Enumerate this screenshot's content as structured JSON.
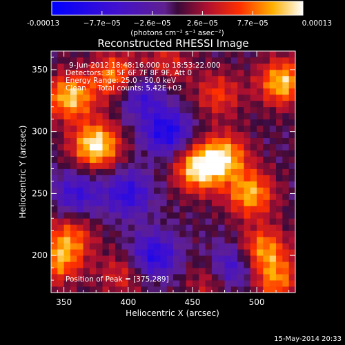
{
  "chart_data": {
    "type": "heatmap",
    "title": "Reconstructed RHESSI Image",
    "xlabel": "Heliocentric X (arcsec)",
    "ylabel": "Heliocentric Y (arcsec)",
    "xlim": [
      340,
      530
    ],
    "ylim": [
      170,
      365
    ],
    "x_ticks": [
      350,
      400,
      450,
      500
    ],
    "y_ticks": [
      200,
      250,
      300,
      350
    ],
    "colorbar": {
      "range": [
        -0.00013,
        0.00013
      ],
      "tick_labels": [
        "-0.00013",
        "−7.7e−05",
        "−2.6e−05",
        "2.6e−05",
        "7.7e−05",
        "0.00013"
      ],
      "unit_label": "(photons cm⁻² s⁻¹ asec⁻²)"
    },
    "annotations": [
      "9-Jun-2012 18:48:16.000 to 18:53:22.000",
      "Detectors: 3F 5F 6F 7F 8F 9F, Att 0",
      "Energy Range: 25.0 - 50.0 keV",
      "Clean     Total counts: 5.42E+03"
    ],
    "peak_label": "Position of Peak = [375,289]",
    "sources": [
      {
        "x": 375,
        "y": 289,
        "value": 0.00013
      },
      {
        "x": 355,
        "y": 328,
        "value": 0.00011
      },
      {
        "x": 390,
        "y": 345,
        "value": 9e-05
      },
      {
        "x": 455,
        "y": 270,
        "value": 0.00012
      },
      {
        "x": 475,
        "y": 280,
        "value": 0.0001
      },
      {
        "x": 495,
        "y": 250,
        "value": 0.0001
      },
      {
        "x": 520,
        "y": 340,
        "value": 0.00011
      },
      {
        "x": 505,
        "y": 205,
        "value": 9e-05
      },
      {
        "x": 515,
        "y": 180,
        "value": 8e-05
      },
      {
        "x": 345,
        "y": 195,
        "value": 8e-05
      },
      {
        "x": 355,
        "y": 215,
        "value": 7e-05
      },
      {
        "x": 470,
        "y": 330,
        "value": 6e-05
      },
      {
        "x": 395,
        "y": 185,
        "value": 5e-05
      },
      {
        "x": 465,
        "y": 180,
        "value": 5e-05
      },
      {
        "x": 430,
        "y": 355,
        "value": 5e-05
      },
      {
        "x": 400,
        "y": 250,
        "value": -8e-05
      },
      {
        "x": 430,
        "y": 300,
        "value": -0.0001
      },
      {
        "x": 420,
        "y": 200,
        "value": -9e-05
      },
      {
        "x": 360,
        "y": 250,
        "value": -7e-05
      },
      {
        "x": 480,
        "y": 190,
        "value": -8e-05
      },
      {
        "x": 410,
        "y": 330,
        "value": -7e-05
      }
    ]
  },
  "footer_date": "15-May-2014 20:33"
}
